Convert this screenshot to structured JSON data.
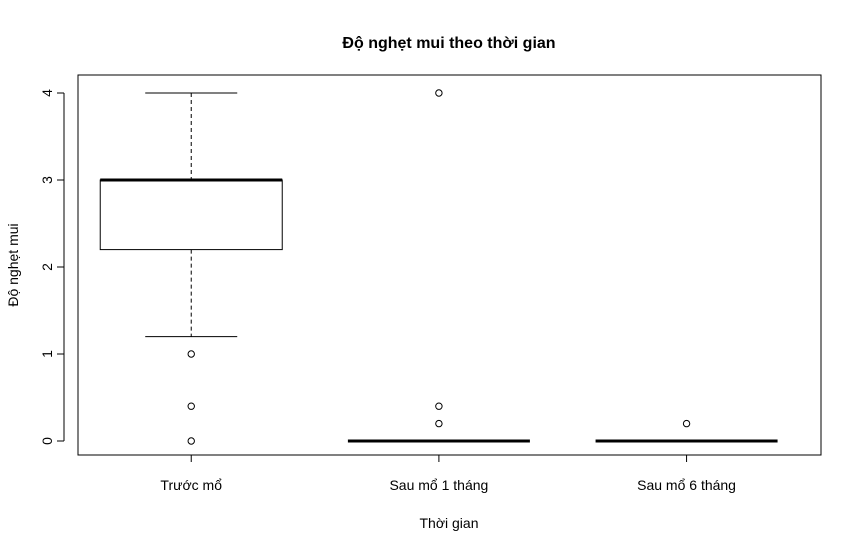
{
  "chart_data": {
    "type": "boxplot",
    "title": "Độ nghẹt mui theo thời gian",
    "xlabel": "Thời gian",
    "ylabel": "Độ nghẹt mui",
    "ylim": [
      -0.15,
      4.15
    ],
    "yticks": [
      0,
      1,
      2,
      3,
      4
    ],
    "categories": [
      "Trước mổ",
      "Sau mổ 1 tháng",
      "Sau  mổ 6 tháng"
    ],
    "boxes": [
      {
        "whisker_low": 1.2,
        "q1": 2.2,
        "median": 3.0,
        "q3": 3.0,
        "whisker_high": 4.0,
        "outliers": [
          1.0,
          0.4,
          0.0
        ]
      },
      {
        "whisker_low": 0.0,
        "q1": 0.0,
        "median": 0.0,
        "q3": 0.0,
        "whisker_high": 0.0,
        "outliers": [
          4.0,
          0.4,
          0.2
        ]
      },
      {
        "whisker_low": 0.0,
        "q1": 0.0,
        "median": 0.0,
        "q3": 0.0,
        "whisker_high": 0.0,
        "outliers": [
          0.2
        ]
      }
    ],
    "grid": false,
    "legend": "none"
  }
}
